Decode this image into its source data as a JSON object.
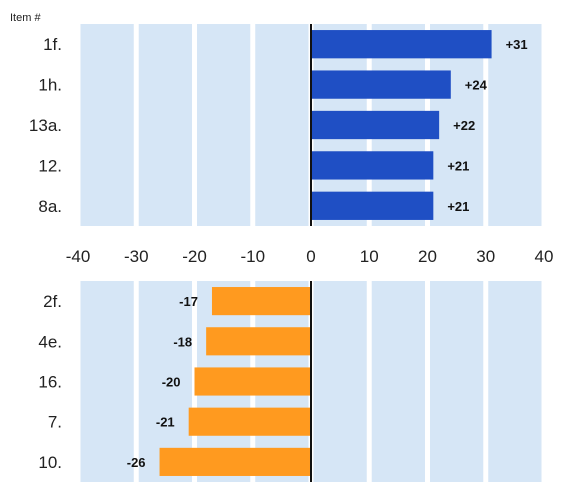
{
  "header_label": "Item #",
  "colors": {
    "background_band": "#d6e6f6",
    "positive_bar": "#1f4fc4",
    "negative_bar": "#ff9a1f",
    "axis_line": "#111111"
  },
  "chart_data": [
    {
      "type": "bar",
      "orientation": "horizontal",
      "categories": [
        "1f.",
        "1h.",
        "13a.",
        "12.",
        "8a."
      ],
      "values": [
        31,
        24,
        22,
        21,
        21
      ],
      "value_labels": [
        "+31",
        "+24",
        "+22",
        "+21",
        "+21"
      ],
      "xlim": [
        -40,
        40
      ],
      "x_ticks": [
        "-40",
        "-30",
        "-20",
        "-10",
        "0",
        "10",
        "20",
        "30",
        "40"
      ],
      "grid": true
    },
    {
      "type": "bar",
      "orientation": "horizontal",
      "categories": [
        "2f.",
        "4e.",
        "16.",
        "7.",
        "10."
      ],
      "values": [
        -17,
        -18,
        -20,
        -21,
        -26
      ],
      "value_labels": [
        "-17",
        "-18",
        "-20",
        "-21",
        "-26"
      ],
      "xlim": [
        -40,
        40
      ],
      "grid": true
    }
  ]
}
